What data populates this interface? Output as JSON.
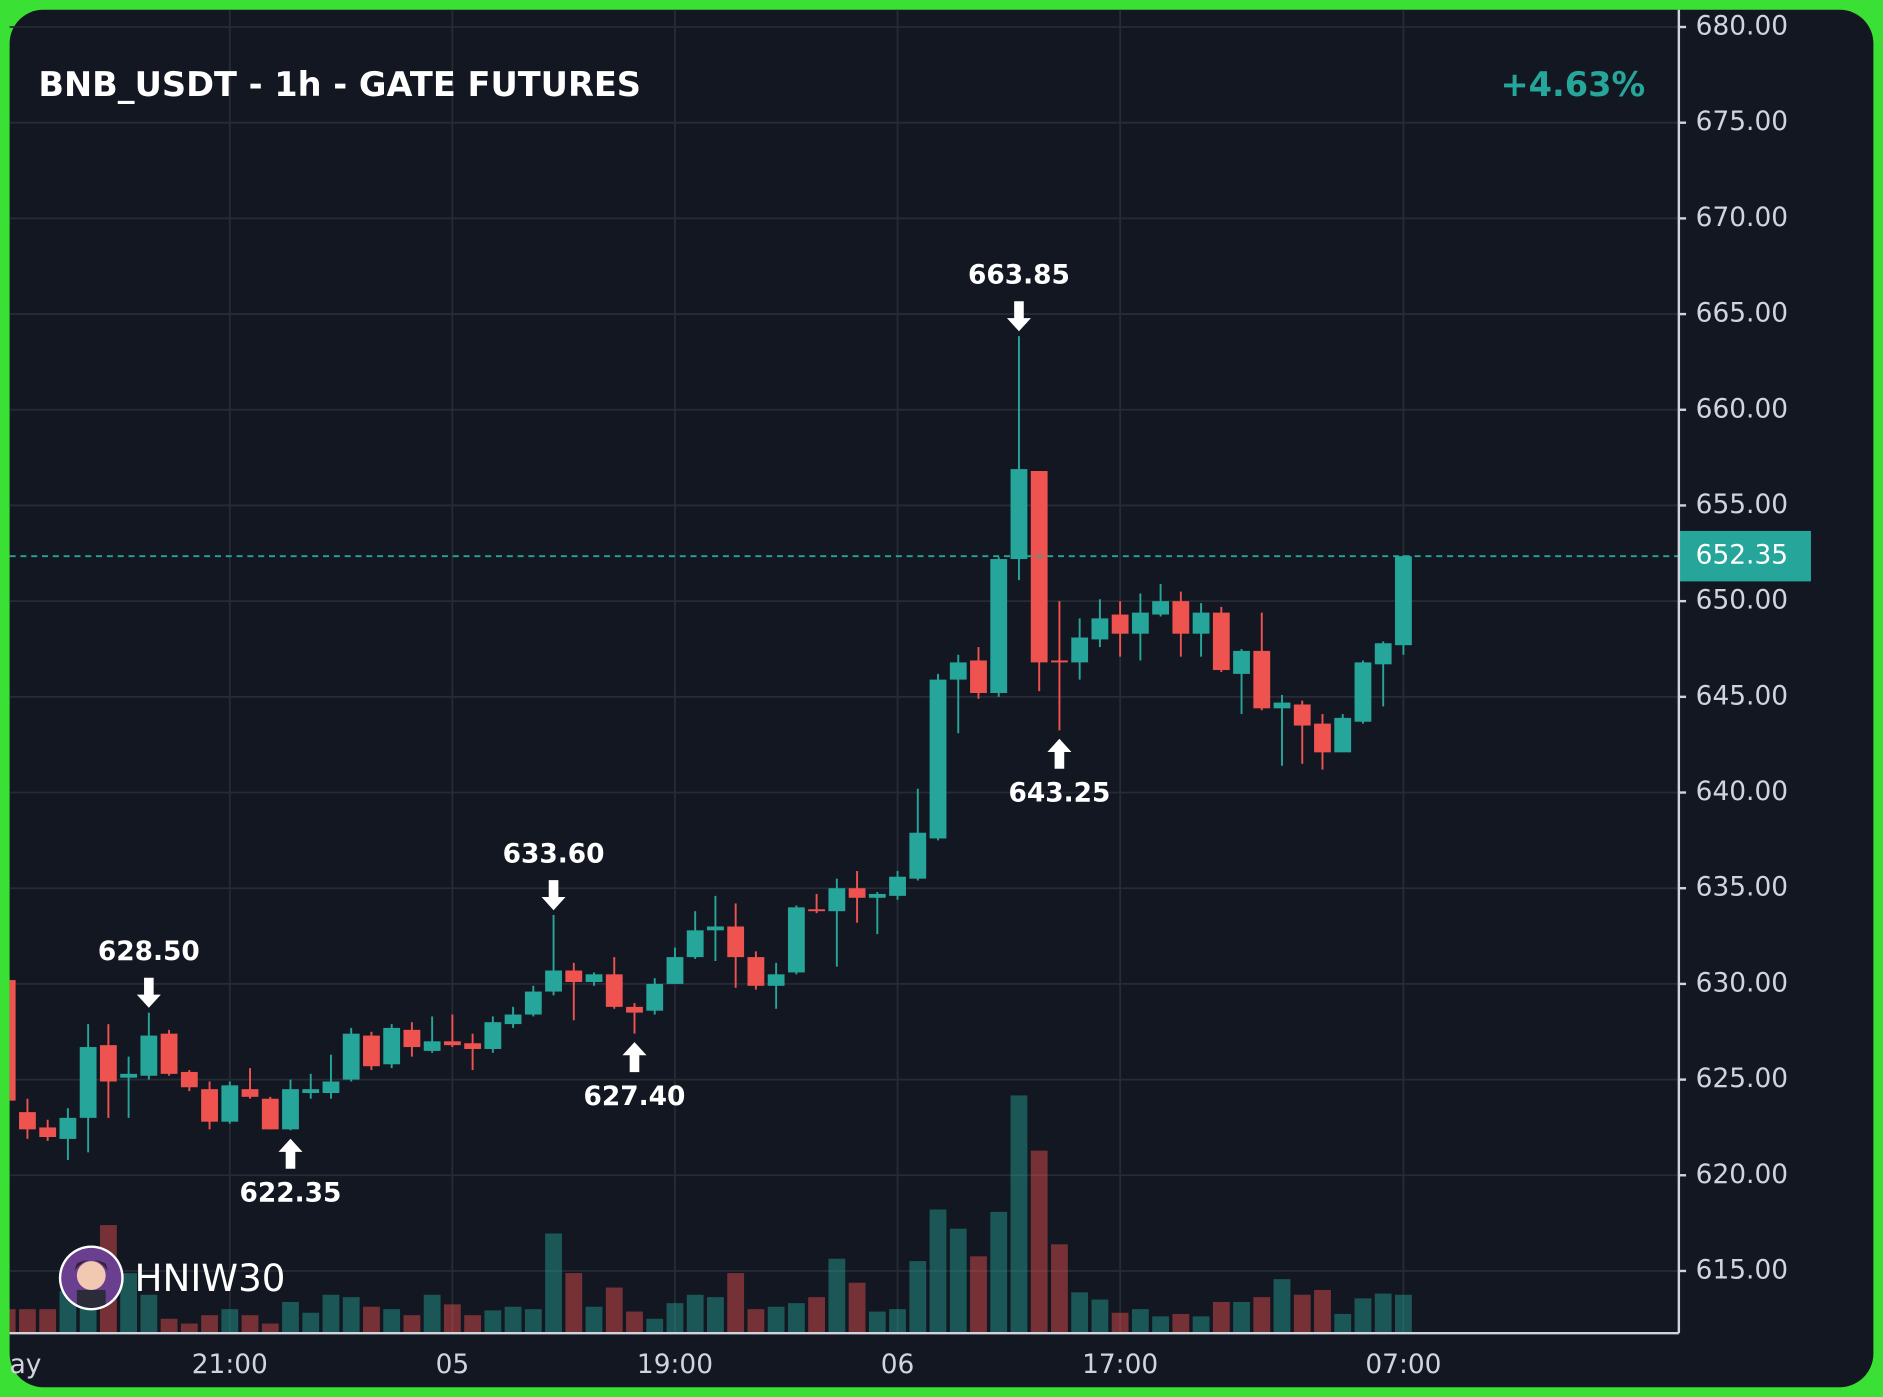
{
  "chart_data": {
    "type": "candlestick",
    "title": "BNB_USDT - 1h - GATE FUTURES",
    "change_label": "+4.63%",
    "watermark": "HNIW30",
    "categories": [
      "ay",
      null,
      null,
      null,
      null,
      null,
      null,
      null,
      null,
      null,
      null,
      "21:00",
      null,
      null,
      null,
      null,
      null,
      null,
      null,
      null,
      null,
      null,
      "05",
      null,
      null,
      null,
      null,
      null,
      null,
      null,
      null,
      null,
      null,
      "19:00",
      null,
      null,
      null,
      null,
      null,
      null,
      null,
      null,
      null,
      null,
      "06",
      null,
      null,
      null,
      null,
      null,
      null,
      null,
      null,
      null,
      null,
      "17:00",
      null,
      null,
      null,
      null,
      null,
      null,
      null,
      null,
      null,
      null,
      null,
      null,
      null,
      "07:00"
    ],
    "open": [
      630.2,
      623.3,
      622.5,
      621.9,
      623.0,
      626.8,
      625.1,
      625.2,
      627.4,
      625.4,
      624.5,
      622.8,
      624.5,
      624.0,
      622.4,
      624.3,
      624.3,
      625.0,
      627.3,
      625.8,
      627.6,
      626.5,
      627.0,
      626.9,
      626.6,
      627.9,
      628.4,
      629.6,
      630.7,
      630.1,
      630.5,
      628.8,
      628.6,
      630.0,
      631.4,
      632.8,
      633.0,
      631.4,
      629.9,
      630.6,
      633.9,
      633.8,
      635.0,
      634.5,
      634.6,
      635.5,
      637.6,
      645.9,
      646.9,
      645.2,
      652.2,
      656.8,
      646.9,
      646.8,
      648.0,
      649.3,
      648.3,
      649.3,
      650.0,
      648.3,
      649.4,
      646.2,
      647.4,
      644.4,
      644.6,
      643.6,
      642.1,
      643.7,
      646.7,
      647.7
    ],
    "high": [
      630.5,
      624.0,
      622.9,
      623.5,
      627.9,
      627.9,
      626.2,
      628.5,
      627.6,
      625.5,
      624.9,
      624.9,
      625.6,
      624.1,
      625.0,
      625.3,
      626.3,
      627.7,
      627.5,
      627.9,
      628.0,
      628.3,
      628.4,
      627.4,
      628.3,
      628.8,
      629.9,
      633.6,
      631.1,
      630.6,
      631.4,
      629.0,
      630.3,
      631.9,
      633.8,
      634.6,
      634.2,
      631.7,
      631.1,
      634.1,
      634.7,
      635.5,
      635.9,
      634.8,
      635.9,
      640.2,
      646.2,
      647.2,
      647.6,
      652.3,
      663.85,
      656.8,
      650.0,
      649.1,
      650.1,
      650.0,
      650.4,
      650.9,
      650.5,
      649.9,
      649.7,
      647.5,
      649.4,
      645.1,
      644.8,
      644.1,
      644.1,
      646.9,
      647.9,
      652.4
    ],
    "low": [
      623.5,
      621.9,
      621.8,
      620.8,
      621.2,
      623.0,
      623.0,
      625.0,
      625.2,
      624.4,
      622.4,
      622.7,
      624.0,
      622.4,
      622.35,
      624.0,
      624.0,
      624.9,
      625.5,
      625.6,
      626.2,
      626.4,
      626.7,
      625.5,
      626.4,
      627.7,
      628.3,
      629.4,
      628.1,
      629.9,
      628.7,
      627.4,
      628.4,
      630.0,
      631.3,
      631.2,
      629.8,
      629.7,
      628.7,
      630.5,
      633.7,
      630.9,
      633.2,
      632.6,
      634.4,
      635.4,
      637.5,
      643.1,
      644.9,
      645.0,
      651.1,
      645.3,
      643.25,
      645.9,
      647.6,
      647.1,
      646.9,
      649.2,
      647.1,
      647.1,
      646.3,
      644.1,
      644.3,
      641.4,
      641.5,
      641.2,
      642.5,
      643.6,
      644.5,
      647.2
    ],
    "close": [
      623.9,
      622.4,
      622.0,
      623.0,
      626.7,
      624.9,
      625.3,
      627.3,
      625.3,
      624.6,
      622.8,
      624.7,
      624.1,
      622.4,
      624.5,
      624.5,
      624.9,
      627.4,
      625.7,
      627.7,
      626.7,
      627.0,
      626.8,
      626.6,
      628.0,
      628.4,
      629.6,
      630.7,
      630.1,
      630.5,
      628.8,
      628.5,
      630.0,
      631.4,
      632.8,
      633.0,
      631.4,
      629.9,
      630.5,
      634.0,
      633.8,
      635.0,
      634.5,
      634.7,
      635.6,
      637.9,
      645.9,
      646.8,
      645.2,
      652.2,
      656.9,
      646.8,
      646.8,
      648.1,
      649.1,
      648.3,
      649.4,
      650.0,
      648.3,
      649.4,
      646.4,
      647.4,
      644.4,
      644.7,
      643.5,
      642.1,
      643.9,
      646.8,
      647.8,
      652.35
    ],
    "volume": [
      20,
      20,
      20,
      35,
      42,
      90,
      50,
      32,
      12,
      8,
      15,
      20,
      15,
      8,
      26,
      17,
      32,
      30,
      22,
      20,
      15,
      32,
      24,
      15,
      19,
      22,
      20,
      83,
      50,
      22,
      38,
      18,
      12,
      25,
      32,
      30,
      50,
      20,
      22,
      25,
      30,
      62,
      42,
      18,
      20,
      60,
      103,
      87,
      64,
      101,
      198,
      152,
      74,
      34,
      28,
      17,
      20,
      14,
      16,
      14,
      26,
      26,
      30,
      45,
      32,
      36,
      16,
      29,
      33,
      32
    ],
    "high_labels": [
      null,
      null,
      null,
      null,
      null,
      null,
      null,
      "628.50",
      null,
      null,
      null,
      null,
      null,
      null,
      null,
      null,
      null,
      null,
      null,
      null,
      null,
      null,
      null,
      null,
      null,
      null,
      null,
      "633.60",
      null,
      null,
      null,
      null,
      null,
      null,
      null,
      null,
      null,
      null,
      null,
      null,
      null,
      null,
      null,
      null,
      null,
      null,
      null,
      null,
      null,
      null,
      "663.85",
      null,
      null,
      null,
      null,
      null,
      null,
      null,
      null,
      null,
      null,
      null,
      null,
      null,
      null,
      null,
      null,
      null,
      null,
      null
    ],
    "low_labels": [
      null,
      null,
      null,
      null,
      null,
      null,
      null,
      null,
      null,
      null,
      null,
      null,
      null,
      null,
      "622.35",
      null,
      null,
      null,
      null,
      null,
      null,
      null,
      null,
      null,
      null,
      null,
      null,
      null,
      null,
      null,
      null,
      "627.40",
      null,
      null,
      null,
      null,
      null,
      null,
      null,
      null,
      null,
      null,
      null,
      null,
      null,
      null,
      null,
      null,
      null,
      null,
      null,
      null,
      "643.25",
      null,
      null,
      null,
      null,
      null,
      null,
      null,
      null,
      null,
      null,
      null,
      null,
      null,
      null,
      null,
      null,
      null
    ],
    "up_color": "#26a69a",
    "down_color": "#ef5350",
    "last_price": {
      "value": 652.35,
      "label": "652.35"
    },
    "ylim": [
      611.75,
      680.9
    ],
    "yticks": [
      {
        "value": 615,
        "label": "615.00"
      },
      {
        "value": 620,
        "label": "620.00"
      },
      {
        "value": 625,
        "label": "625.00"
      },
      {
        "value": 630,
        "label": "630.00"
      },
      {
        "value": 635,
        "label": "635.00"
      },
      {
        "value": 640,
        "label": "640.00"
      },
      {
        "value": 645,
        "label": "645.00"
      },
      {
        "value": 650,
        "label": "650.00"
      },
      {
        "value": 655,
        "label": "655.00"
      },
      {
        "value": 660,
        "label": "660.00"
      },
      {
        "value": 665,
        "label": "665.00"
      },
      {
        "value": 670,
        "label": "670.00"
      },
      {
        "value": 675,
        "label": "675.00"
      },
      {
        "value": 680,
        "label": "680.00"
      }
    ],
    "grid": true
  }
}
